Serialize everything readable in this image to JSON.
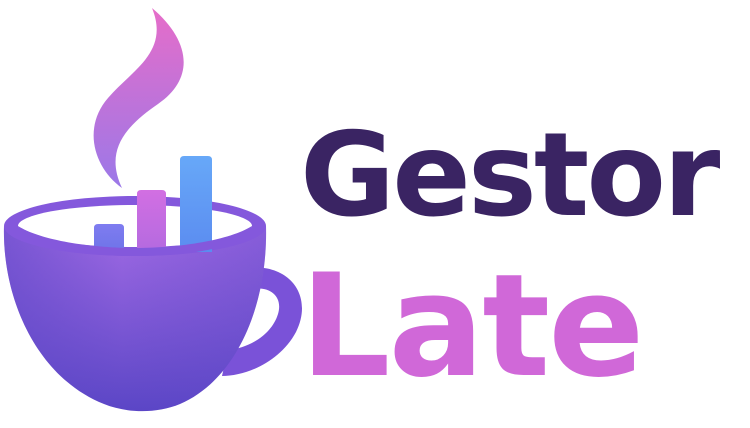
{
  "logo": {
    "word_top": "Gestor",
    "word_bottom": "Late",
    "icon": "coffee-cup-bar-chart-icon",
    "colors": {
      "word_top": "#3a2463",
      "word_bottom_start": "#e266d4",
      "word_bottom_end": "#b86be6",
      "cup_light": "#a06ae4",
      "cup_dark": "#5b46c6",
      "steam_top": "#e66dc9",
      "steam_bottom": "#9b78e8",
      "bar_low": "#6e74e8",
      "bar_mid": "#c46de0",
      "bar_high": "#5f9cf5"
    }
  }
}
